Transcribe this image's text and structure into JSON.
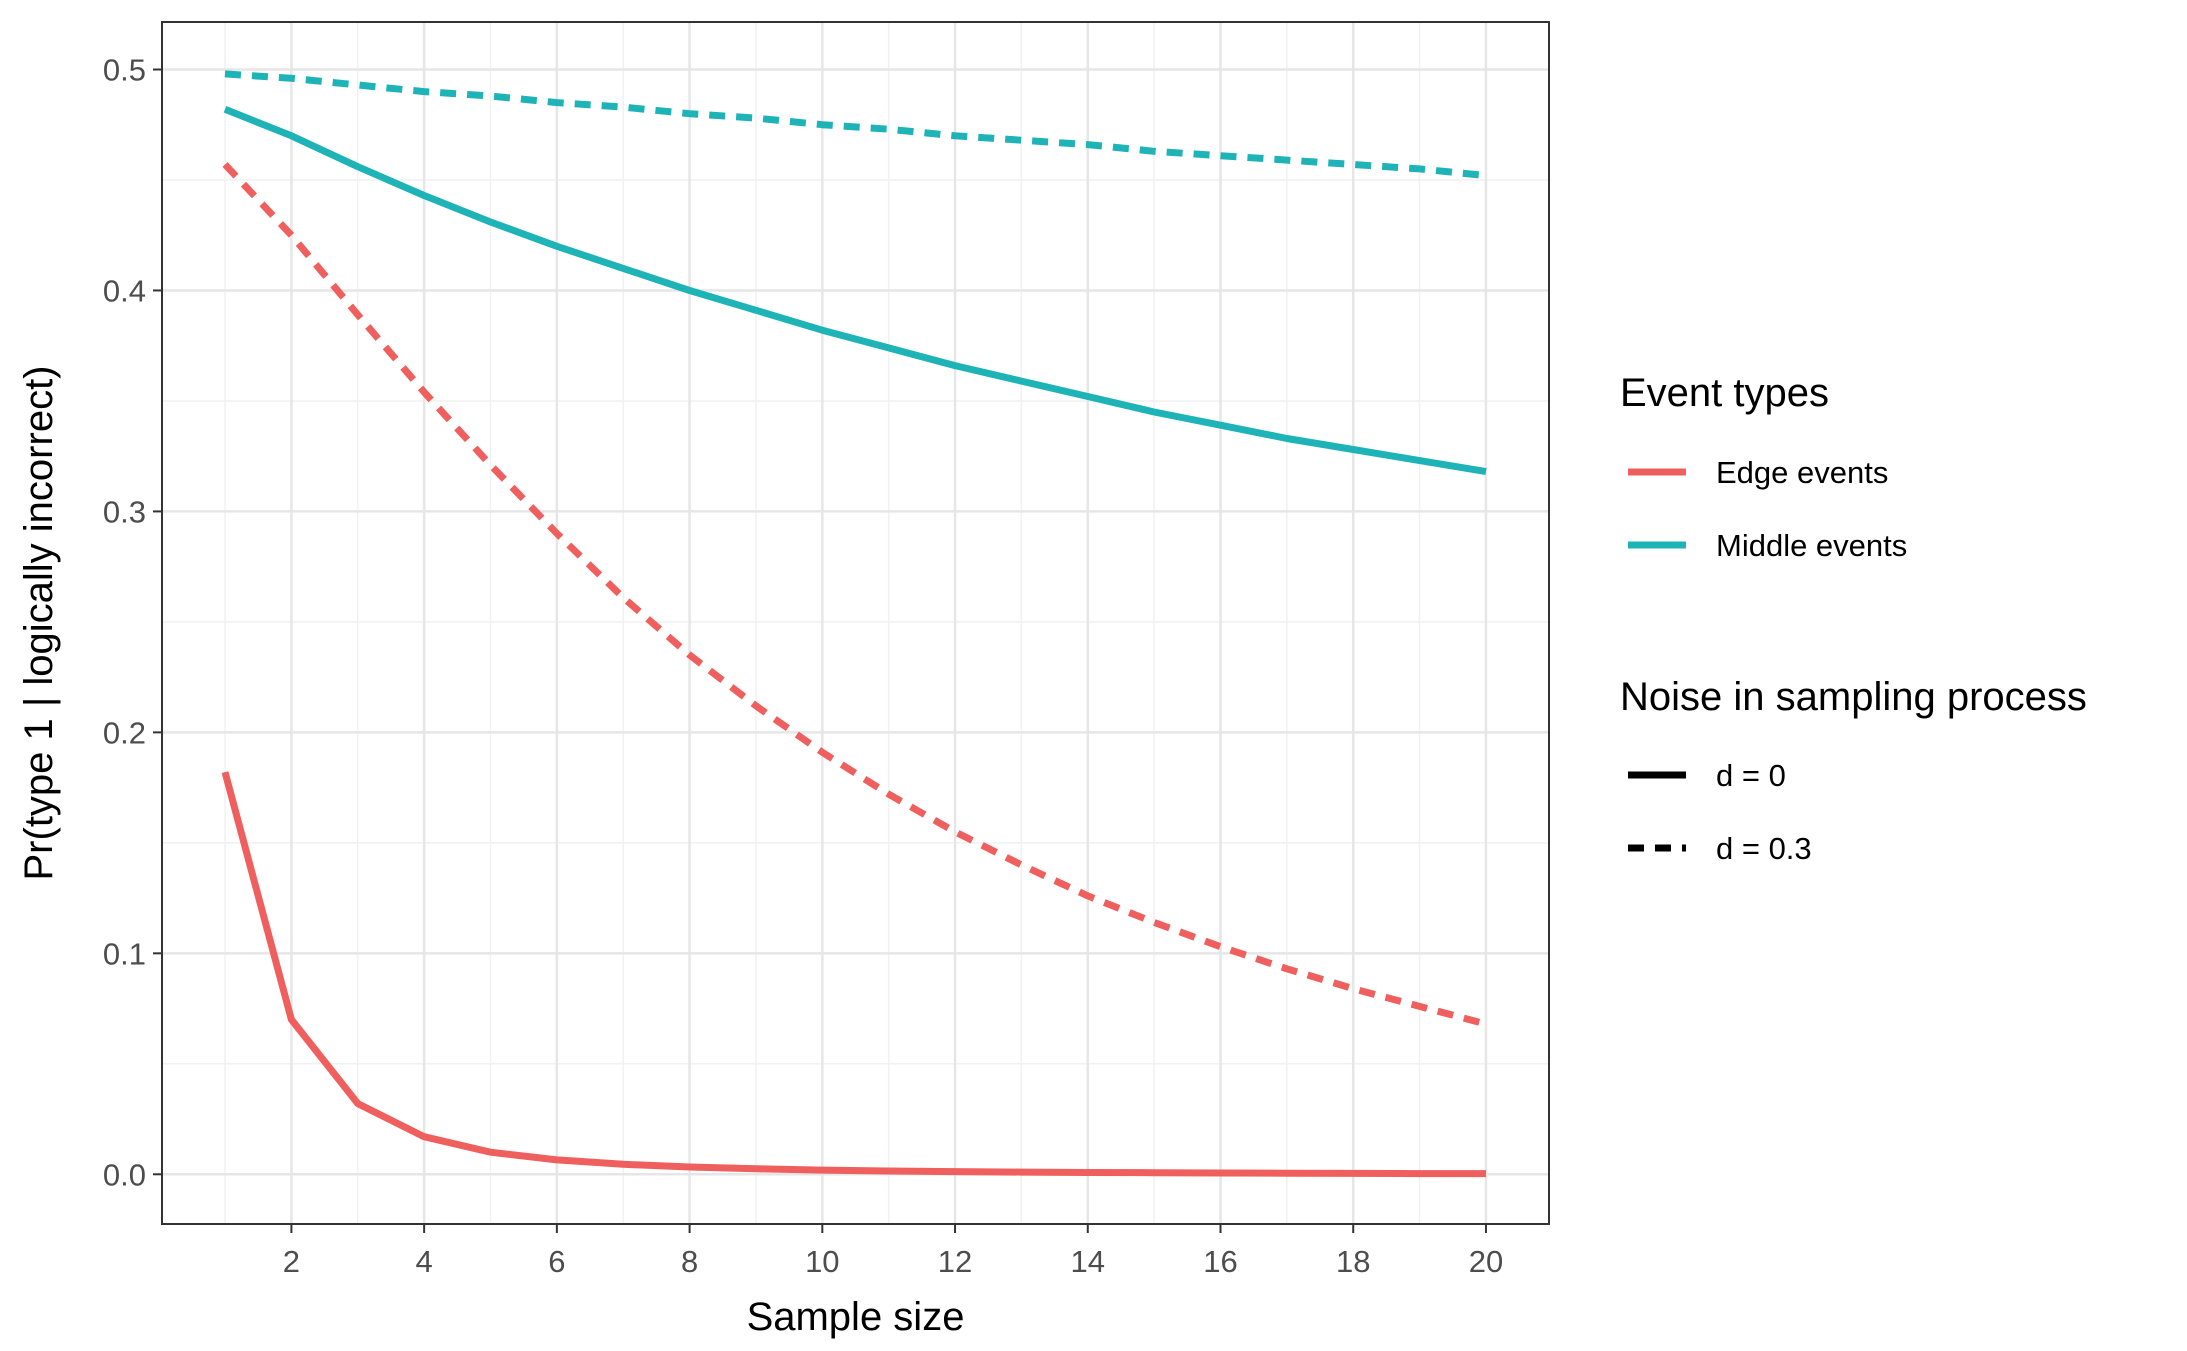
{
  "chart_data": {
    "type": "line",
    "xlabel": "Sample size",
    "ylabel": "Pr(type 1 | logically incorrect)",
    "xlim": [
      0.05,
      20.95
    ],
    "ylim": [
      -0.0225,
      0.5215
    ],
    "x_ticks": [
      2,
      4,
      6,
      8,
      10,
      12,
      14,
      16,
      18,
      20
    ],
    "y_ticks": [
      0.0,
      0.1,
      0.2,
      0.3,
      0.4,
      0.5
    ],
    "y_tick_labels": [
      "0.0",
      "0.1",
      "0.2",
      "0.3",
      "0.4",
      "0.5"
    ],
    "x_minor_gridlines": [
      1,
      3,
      5,
      7,
      9,
      11,
      13,
      15,
      17,
      19
    ],
    "y_minor_gridlines": [
      0.05,
      0.15,
      0.25,
      0.35,
      0.45
    ],
    "grid": true,
    "x": [
      1,
      2,
      3,
      4,
      5,
      6,
      7,
      8,
      9,
      10,
      11,
      12,
      13,
      14,
      15,
      16,
      17,
      18,
      19,
      20
    ],
    "series": [
      {
        "event_type": "Edge events",
        "noise": "d = 0",
        "color": "#ef5f5e",
        "dash": "solid",
        "values": [
          0.182,
          0.07,
          0.032,
          0.017,
          0.01,
          0.0065,
          0.0045,
          0.0033,
          0.0025,
          0.0019,
          0.0015,
          0.0012,
          0.001,
          0.0008,
          0.0007,
          0.0006,
          0.0005,
          0.0004,
          0.0003,
          0.0003
        ]
      },
      {
        "event_type": "Edge events",
        "noise": "d = 0.3",
        "color": "#ef5f5e",
        "dash": "dashed",
        "values": [
          0.457,
          0.425,
          0.389,
          0.354,
          0.321,
          0.29,
          0.261,
          0.235,
          0.212,
          0.191,
          0.172,
          0.155,
          0.14,
          0.126,
          0.114,
          0.103,
          0.093,
          0.084,
          0.076,
          0.068
        ]
      },
      {
        "event_type": "Middle events",
        "noise": "d = 0",
        "color": "#1eb3b6",
        "dash": "solid",
        "values": [
          0.482,
          0.47,
          0.456,
          0.443,
          0.431,
          0.42,
          0.41,
          0.4,
          0.391,
          0.382,
          0.374,
          0.366,
          0.359,
          0.352,
          0.345,
          0.339,
          0.333,
          0.328,
          0.323,
          0.318
        ]
      },
      {
        "event_type": "Middle events",
        "noise": "d = 0.3",
        "color": "#1eb3b6",
        "dash": "dashed",
        "values": [
          0.498,
          0.496,
          0.493,
          0.49,
          0.488,
          0.485,
          0.483,
          0.48,
          0.478,
          0.475,
          0.473,
          0.47,
          0.468,
          0.466,
          0.463,
          0.461,
          0.459,
          0.457,
          0.455,
          0.452
        ]
      }
    ],
    "legend": {
      "position": "right",
      "event_types": {
        "title": "Event types",
        "items": [
          {
            "label": "Edge events",
            "color": "#ef5f5e"
          },
          {
            "label": "Middle events",
            "color": "#1eb3b6"
          }
        ]
      },
      "noise": {
        "title": "Noise in sampling process",
        "items": [
          {
            "label": "d = 0",
            "dash": "solid"
          },
          {
            "label": "d = 0.3",
            "dash": "dashed"
          }
        ]
      }
    }
  }
}
